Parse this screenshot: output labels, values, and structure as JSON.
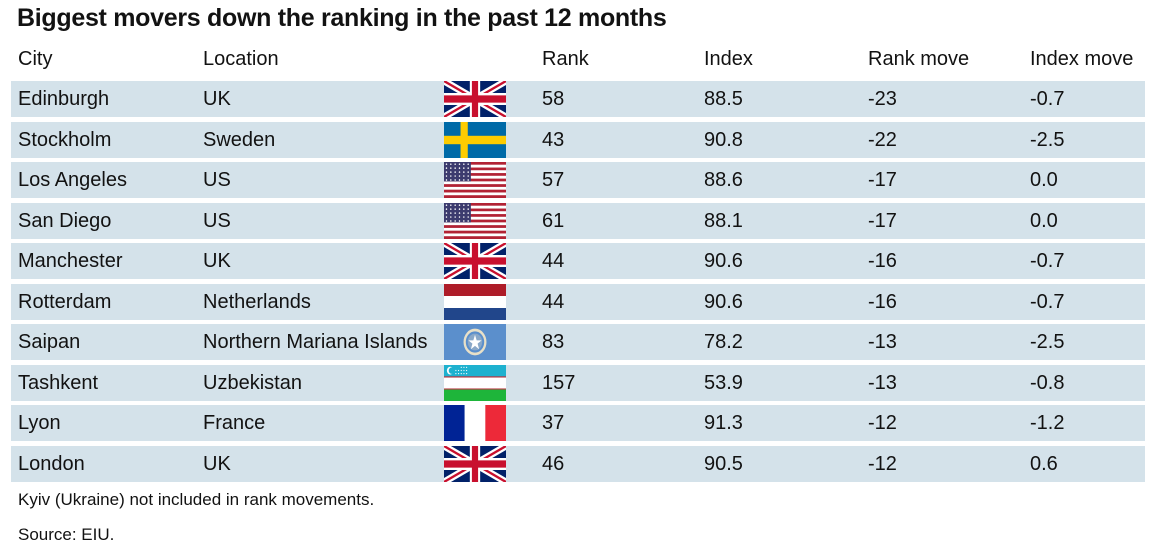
{
  "title": "Biggest movers down the ranking in the past 12 months",
  "columns": {
    "city": "City",
    "location": "Location",
    "rank": "Rank",
    "index": "Index",
    "rank_move": "Rank move",
    "index_move": "Index move"
  },
  "flag_colors": {
    "uk_blue": "#012169",
    "uk_red": "#C8102E",
    "sweden_blue": "#006AA7",
    "sweden_yellow": "#FECC00",
    "us_red": "#B22234",
    "us_blue": "#3C3B6E",
    "netherlands_red": "#AE1C28",
    "netherlands_blue": "#21468B",
    "nmi_blue": "#5B8FCC",
    "uzbekistan_blue": "#1EB1CF",
    "uzbekistan_green": "#1EB53A",
    "france_blue": "#002395",
    "france_red": "#ED2939"
  },
  "row_background": "#d4e2ea",
  "chart_data": {
    "type": "table",
    "title": "Biggest movers down the ranking in the past 12 months",
    "headers": [
      "City",
      "Location",
      "Rank",
      "Index",
      "Rank move",
      "Index move"
    ],
    "rows": [
      {
        "city": "Edinburgh",
        "location": "UK",
        "flag": "uk-flag-icon",
        "rank": "58",
        "index": "88.5",
        "rank_move": "-23",
        "index_move": "-0.7"
      },
      {
        "city": "Stockholm",
        "location": "Sweden",
        "flag": "sweden-flag-icon",
        "rank": "43",
        "index": "90.8",
        "rank_move": "-22",
        "index_move": "-2.5"
      },
      {
        "city": "Los Angeles",
        "location": "US",
        "flag": "us-flag-icon",
        "rank": "57",
        "index": "88.6",
        "rank_move": "-17",
        "index_move": "0.0"
      },
      {
        "city": "San Diego",
        "location": "US",
        "flag": "us-flag-icon",
        "rank": "61",
        "index": "88.1",
        "rank_move": "-17",
        "index_move": "0.0"
      },
      {
        "city": "Manchester",
        "location": "UK",
        "flag": "uk-flag-icon",
        "rank": "44",
        "index": "90.6",
        "rank_move": "-16",
        "index_move": "-0.7"
      },
      {
        "city": "Rotterdam",
        "location": "Netherlands",
        "flag": "netherlands-flag-icon",
        "rank": "44",
        "index": "90.6",
        "rank_move": "-16",
        "index_move": "-0.7"
      },
      {
        "city": "Saipan",
        "location": "Northern Mariana Islands",
        "flag": "northern-mariana-islands-flag-icon",
        "rank": "83",
        "index": "78.2",
        "rank_move": "-13",
        "index_move": "-2.5"
      },
      {
        "city": "Tashkent",
        "location": "Uzbekistan",
        "flag": "uzbekistan-flag-icon",
        "rank": "157",
        "index": "53.9",
        "rank_move": "-13",
        "index_move": "-0.8"
      },
      {
        "city": "Lyon",
        "location": "France",
        "flag": "france-flag-icon",
        "rank": "37",
        "index": "91.3",
        "rank_move": "-12",
        "index_move": "-1.2"
      },
      {
        "city": "London",
        "location": "UK",
        "flag": "uk-flag-icon",
        "rank": "46",
        "index": "90.5",
        "rank_move": "-12",
        "index_move": "0.6"
      }
    ]
  },
  "footnote": "Kyiv (Ukraine) not included in rank movements.",
  "source": "Source: EIU."
}
